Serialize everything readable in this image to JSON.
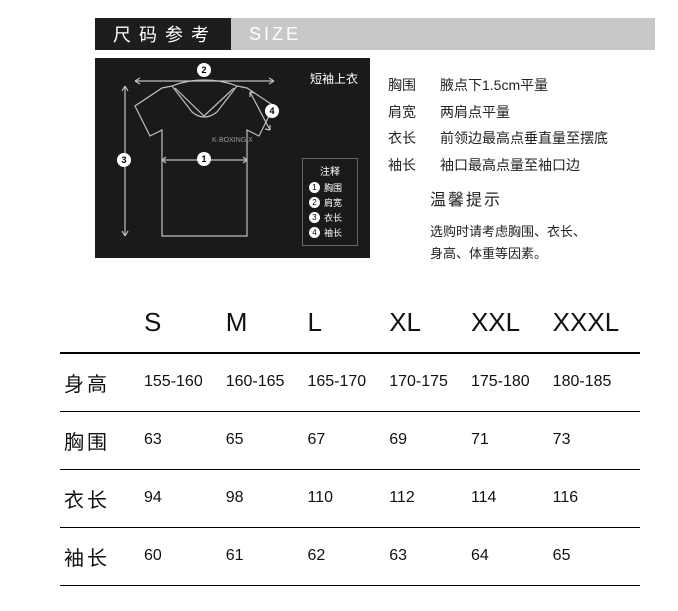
{
  "header": {
    "title_cn": "尺码参考",
    "title_en": "SIZE"
  },
  "diagram": {
    "title": "短袖上衣",
    "brand": "K·BOXING X",
    "legend_title": "注释",
    "badges": [
      {
        "num": "1",
        "label": "胸围"
      },
      {
        "num": "2",
        "label": "肩宽"
      },
      {
        "num": "3",
        "label": "衣长"
      },
      {
        "num": "4",
        "label": "袖长"
      }
    ],
    "colors": {
      "bg": "#1a1a1a",
      "line": "#bfbfbf",
      "text": "#ffffff"
    }
  },
  "guide": {
    "rows": [
      {
        "label": "胸围",
        "desc": "腋点下1.5cm平量"
      },
      {
        "label": "肩宽",
        "desc": "两肩点平量"
      },
      {
        "label": "衣长",
        "desc": "前领边最高点垂直量至摆底"
      },
      {
        "label": "袖长",
        "desc": "袖口最高点量至袖口边"
      }
    ],
    "tips_title": "温馨提示",
    "tips_body_1": "选购时请考虑胸围、衣长、",
    "tips_body_2": "身高、体重等因素。"
  },
  "table": {
    "sizes": [
      "S",
      "M",
      "L",
      "XL",
      "XXL",
      "XXXL"
    ],
    "rows": [
      {
        "label": "身高",
        "values": [
          "155-160",
          "160-165",
          "165-170",
          "170-175",
          "175-180",
          "180-185"
        ],
        "small": true
      },
      {
        "label": "胸围",
        "values": [
          "63",
          "65",
          "67",
          "69",
          "71",
          "73"
        ]
      },
      {
        "label": "衣长",
        "values": [
          "94",
          "98",
          "110",
          "112",
          "114",
          "116"
        ]
      },
      {
        "label": "袖长",
        "values": [
          "60",
          "61",
          "62",
          "63",
          "64",
          "65"
        ]
      }
    ]
  }
}
